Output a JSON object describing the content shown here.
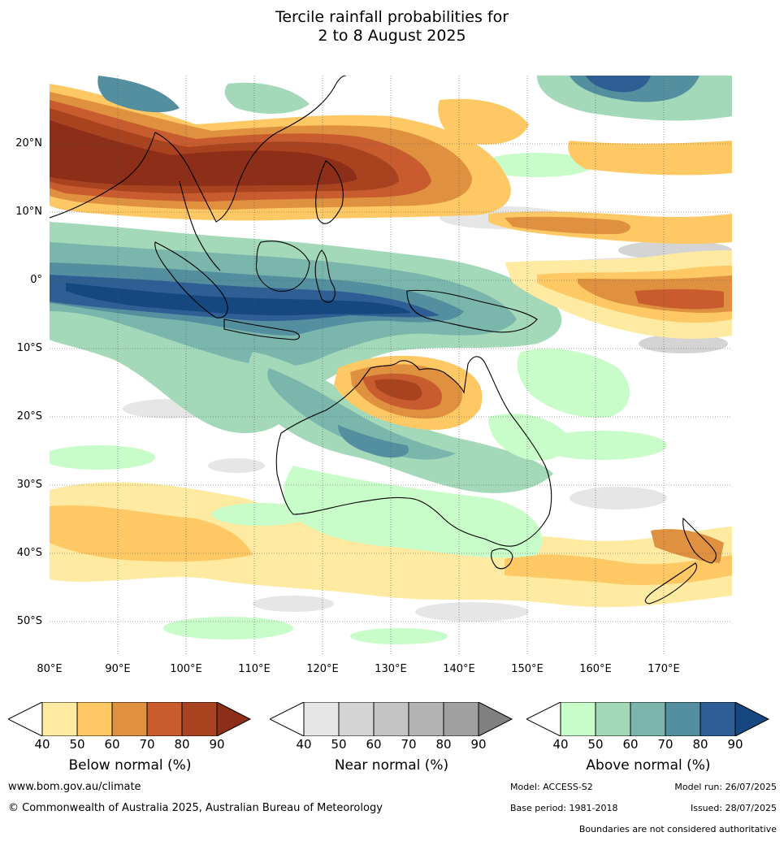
{
  "title_line1": "Tercile rainfall probabilities for",
  "title_line2": "2 to 8 August 2025",
  "lat_labels": [
    "20°N",
    "10°N",
    "0°",
    "10°S",
    "20°S",
    "30°S",
    "40°S",
    "50°S"
  ],
  "lon_labels": [
    "80°E",
    "90°E",
    "100°E",
    "110°E",
    "120°E",
    "130°E",
    "140°E",
    "150°E",
    "160°E",
    "170°E"
  ],
  "legend": {
    "ticks": [
      "40",
      "50",
      "60",
      "70",
      "80",
      "90"
    ],
    "below": {
      "label": "Below normal (%)",
      "colors": [
        "#ffffff",
        "#feeaa0",
        "#fec965",
        "#e0913f",
        "#c95c2e",
        "#a9431f",
        "#8c2e18"
      ]
    },
    "near": {
      "label": "Near normal (%)",
      "colors": [
        "#ffffff",
        "#e6e6e6",
        "#d4d4d4",
        "#c4c4c4",
        "#b3b3b3",
        "#a0a0a0",
        "#808080"
      ]
    },
    "above": {
      "label": "Above normal (%)",
      "colors": [
        "#ffffff",
        "#c8fcc8",
        "#a3d8b8",
        "#7bb6ac",
        "#548f9f",
        "#2e5e94",
        "#14487f"
      ]
    }
  },
  "footer": {
    "website": "www.bom.gov.au/climate",
    "copyright": "© Commonwealth of Australia 2025, Australian Bureau of Meteorology",
    "model": "Model: ACCESS-S2",
    "model_run": "Model run: 26/07/2025",
    "base_period": "Base period: 1981-2018",
    "issued": "Issued: 28/07/2025",
    "boundaries": "Boundaries are not considered authoritative"
  }
}
